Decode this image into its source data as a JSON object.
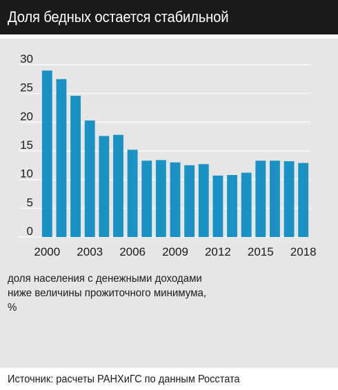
{
  "header": {
    "title": "Доля бедных остается стабильной"
  },
  "colors": {
    "bar": "#1a92c4",
    "header_bg": "#1a1a1a",
    "panel_bg": "#e6e6e6",
    "grid": "#ffffff"
  },
  "chart_data": {
    "type": "bar",
    "title": "Доля бедных остается стабильной",
    "categories": [
      "2000",
      "2001",
      "2002",
      "2003",
      "2004",
      "2005",
      "2006",
      "2007",
      "2008",
      "2009",
      "2010",
      "2011",
      "2012",
      "2013",
      "2014",
      "2015",
      "2016",
      "2017",
      "2018"
    ],
    "x_tick_labels": [
      "2000",
      "2003",
      "2006",
      "2009",
      "2012",
      "2015",
      "2018"
    ],
    "values": [
      29.0,
      27.5,
      24.6,
      20.3,
      17.6,
      17.8,
      15.2,
      13.3,
      13.4,
      13.0,
      12.5,
      12.7,
      10.7,
      10.8,
      11.2,
      13.3,
      13.3,
      13.2,
      12.9
    ],
    "y_ticks": [
      0,
      5,
      10,
      15,
      20,
      25,
      30
    ],
    "ylim": [
      0,
      30
    ],
    "grid": true,
    "note_lines": [
      "доля населения с денежными доходами",
      "ниже величины прожиточного минимума,",
      "%"
    ],
    "source": "Источник: расчеты РАНХиГС по данным Росстата"
  }
}
